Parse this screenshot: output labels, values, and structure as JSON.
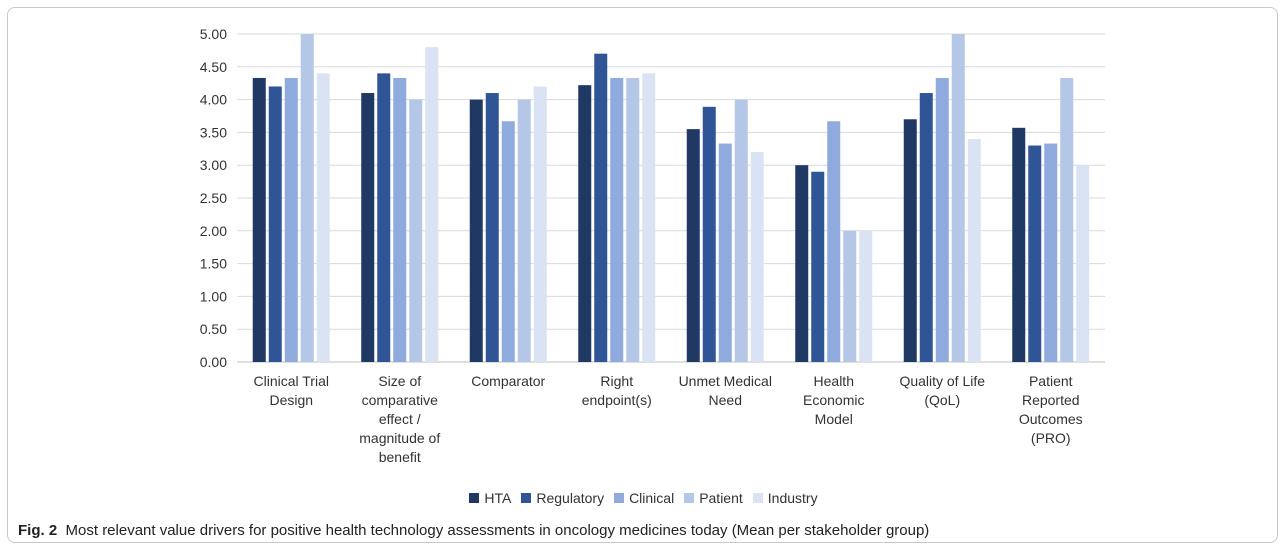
{
  "caption": {
    "label": "Fig. 2",
    "text": "Most relevant value drivers for positive health technology assessments in oncology medicines today (Mean per stakeholder group)"
  },
  "chart_data": {
    "type": "bar",
    "categories": [
      "Clinical Trial\nDesign",
      "Size of\ncomparative\neffect /\nmagnitude of\nbenefit",
      "Comparator",
      "Right\nendpoint(s)",
      "Unmet Medical\nNeed",
      "Health\nEconomic\nModel",
      "Quality of Life\n(QoL)",
      "Patient\nReported\nOutcomes\n(PRO)"
    ],
    "series": [
      {
        "name": "HTA",
        "color": "#1f3864",
        "values": [
          4.33,
          4.1,
          4.0,
          4.22,
          3.55,
          3.0,
          3.7,
          3.57
        ]
      },
      {
        "name": "Regulatory",
        "color": "#2f5597",
        "values": [
          4.2,
          4.4,
          4.1,
          4.7,
          3.89,
          2.9,
          4.1,
          3.3
        ]
      },
      {
        "name": "Clinical",
        "color": "#8faadc",
        "values": [
          4.33,
          4.33,
          3.67,
          4.33,
          3.33,
          3.67,
          4.33,
          3.33
        ]
      },
      {
        "name": "Patient",
        "color": "#b4c7e7",
        "values": [
          5.0,
          4.0,
          4.0,
          4.33,
          4.0,
          2.0,
          5.0,
          4.33
        ]
      },
      {
        "name": "Industry",
        "color": "#dae3f3",
        "values": [
          4.4,
          4.8,
          4.2,
          4.4,
          3.2,
          2.0,
          3.4,
          3.0
        ]
      }
    ],
    "yticks": [
      "0.00",
      "0.50",
      "1.00",
      "1.50",
      "2.00",
      "2.50",
      "3.00",
      "3.50",
      "4.00",
      "4.50",
      "5.00"
    ],
    "ylim": [
      0,
      5
    ],
    "grid": true,
    "legend_position": "bottom"
  }
}
